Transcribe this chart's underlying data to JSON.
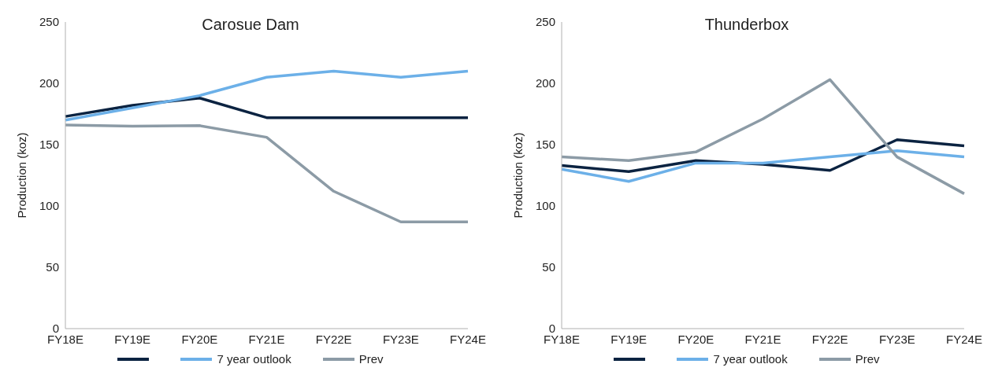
{
  "chart_data": [
    {
      "type": "line",
      "title": "Carosue Dam",
      "ylabel": "Production (koz)",
      "categories": [
        "FY18E",
        "FY19E",
        "FY20E",
        "FY21E",
        "FY22E",
        "FY23E",
        "FY24E"
      ],
      "series": [
        {
          "color": "#0b2341",
          "values": [
            173,
            182,
            188,
            172,
            172,
            172,
            172
          ]
        },
        {
          "name": "7 year outlook",
          "color": "#6cb0e8",
          "values": [
            170,
            180,
            190,
            205,
            210,
            205,
            210
          ]
        },
        {
          "name": "Prev",
          "color": "#8c9ba6",
          "values": [
            166,
            165,
            165.5,
            156,
            112,
            87,
            87
          ]
        }
      ],
      "ylim": [
        0,
        250
      ],
      "yticks": [
        0,
        50,
        100,
        150,
        200,
        250
      ],
      "grid": false,
      "legend": "bottom",
      "marker": "none",
      "line_style": "solid"
    },
    {
      "type": "line",
      "title": "Thunderbox",
      "ylabel": "Production (koz)",
      "categories": [
        "FY18E",
        "FY19E",
        "FY20E",
        "FY21E",
        "FY22E",
        "FY23E",
        "FY24E"
      ],
      "series": [
        {
          "color": "#0b2341",
          "values": [
            133,
            128,
            137,
            134,
            129,
            154,
            149
          ]
        },
        {
          "name": "7 year outlook",
          "color": "#6cb0e8",
          "values": [
            130,
            120,
            135,
            135,
            140,
            145,
            140
          ]
        },
        {
          "name": "Prev",
          "color": "#8c9ba6",
          "values": [
            140,
            137,
            144,
            171,
            203,
            140,
            110
          ]
        }
      ],
      "ylim": [
        0,
        250
      ],
      "yticks": [
        0,
        50,
        100,
        150,
        200,
        250
      ],
      "grid": false,
      "legend": "bottom",
      "marker": "none",
      "line_style": "solid"
    }
  ]
}
